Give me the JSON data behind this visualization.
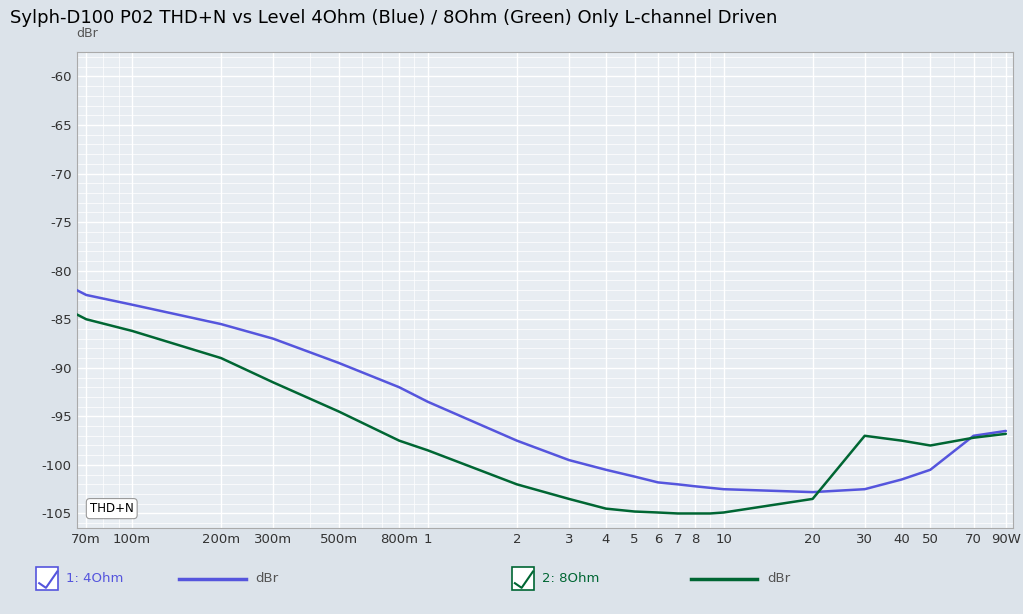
{
  "title": "Sylph-D100 P02 THD+N vs Level 4Ohm (Blue) / 8Ohm (Green) Only L-channel Driven",
  "ylabel": "dBr",
  "bg_color": "#dce3ea",
  "plot_bg_color": "#e8edf2",
  "grid_color": "#ffffff",
  "grid_minor_color": "#f0f3f6",
  "ylim": [
    -106.5,
    -57.5
  ],
  "yticks": [
    -60,
    -65,
    -70,
    -75,
    -80,
    -85,
    -90,
    -95,
    -100,
    -105
  ],
  "blue_color": "#5555dd",
  "green_color": "#006633",
  "legend1_label": "1: 4Ohm",
  "legend2_label": "2: 8Ohm",
  "legend_xlabel": "dBr",
  "thdn_label": "THD+N",
  "x_log_min": 0.065,
  "x_log_max": 95,
  "x_ticks": [
    0.07,
    0.1,
    0.2,
    0.3,
    0.5,
    0.8,
    1,
    2,
    3,
    4,
    5,
    6,
    7,
    8,
    10,
    20,
    30,
    40,
    50,
    70,
    90
  ],
  "x_labels": [
    "70m",
    "100m",
    "200m",
    "300m",
    "500m",
    "800m",
    "1",
    "2",
    "3",
    "4",
    "5",
    "6",
    "7",
    "8",
    "10",
    "20",
    "30",
    "40",
    "50",
    "70",
    "90W"
  ],
  "blue_x": [
    0.065,
    0.07,
    0.1,
    0.2,
    0.3,
    0.5,
    0.8,
    1.0,
    2.0,
    3.0,
    4.0,
    5.0,
    6.0,
    7.0,
    8.0,
    10.0,
    20.0,
    30.0,
    40.0,
    50.0,
    70.0,
    90.0
  ],
  "blue_y": [
    -82.0,
    -82.5,
    -83.5,
    -85.5,
    -87.0,
    -89.5,
    -92.0,
    -93.5,
    -97.5,
    -99.5,
    -100.5,
    -101.2,
    -101.8,
    -102.0,
    -102.2,
    -102.5,
    -102.8,
    -102.5,
    -101.5,
    -100.5,
    -97.0,
    -96.5
  ],
  "green_x": [
    0.065,
    0.07,
    0.1,
    0.2,
    0.3,
    0.5,
    0.8,
    1.0,
    2.0,
    3.0,
    4.0,
    5.0,
    6.0,
    7.0,
    8.0,
    9.0,
    10.0,
    20.0,
    30.0,
    40.0,
    50.0,
    70.0,
    90.0
  ],
  "green_y": [
    -84.5,
    -85.0,
    -86.2,
    -89.0,
    -91.5,
    -94.5,
    -97.5,
    -98.5,
    -102.0,
    -103.5,
    -104.5,
    -104.8,
    -104.9,
    -105.0,
    -105.0,
    -105.0,
    -104.9,
    -103.5,
    -97.0,
    -97.5,
    -98.0,
    -97.2,
    -96.8
  ]
}
